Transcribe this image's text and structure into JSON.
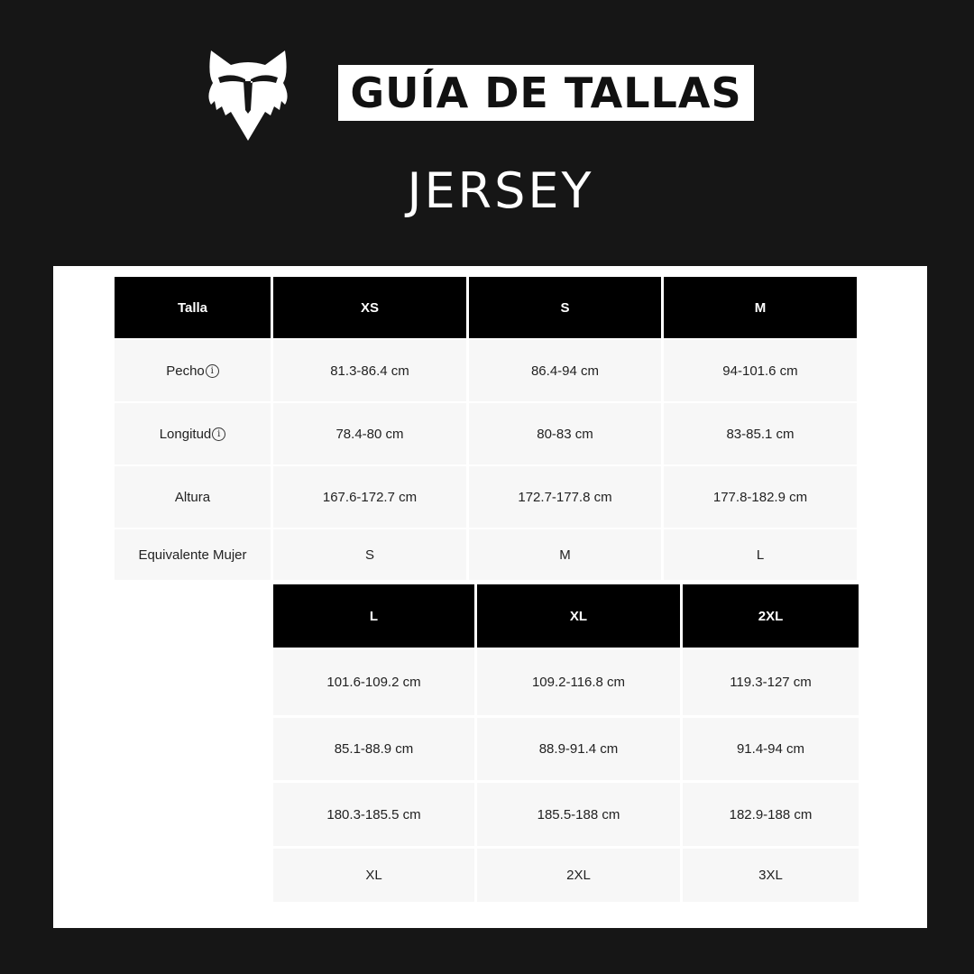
{
  "header": {
    "logo": "fox-head-logo",
    "title": "GUÍA DE TALLAS",
    "subtitle": "JERSEY"
  },
  "colors": {
    "background": "#161616",
    "header_cell": "#000000",
    "body_cell": "#f7f7f7"
  },
  "table1": {
    "row_header": "Talla",
    "columns": [
      "XS",
      "S",
      "M"
    ],
    "rows": [
      {
        "label": "Pecho",
        "info_icon": true,
        "values": [
          "81.3-86.4 cm",
          "86.4-94 cm",
          "94-101.6 cm"
        ]
      },
      {
        "label": "Longitud",
        "info_icon": true,
        "values": [
          "78.4-80 cm",
          "80-83 cm",
          "83-85.1 cm"
        ]
      },
      {
        "label": "Altura",
        "info_icon": false,
        "values": [
          "167.6-172.7 cm",
          "172.7-177.8 cm",
          "177.8-182.9 cm"
        ]
      },
      {
        "label": "Equivalente Mujer",
        "info_icon": false,
        "values": [
          "S",
          "M",
          "L"
        ]
      }
    ]
  },
  "table2": {
    "columns": [
      "L",
      "XL",
      "2XL"
    ],
    "rows": [
      {
        "values": [
          "101.6-109.2 cm",
          "109.2-116.8 cm",
          "119.3-127 cm"
        ]
      },
      {
        "values": [
          "85.1-88.9 cm",
          "88.9-91.4 cm",
          "91.4-94 cm"
        ]
      },
      {
        "values": [
          "180.3-185.5 cm",
          "185.5-188 cm",
          "182.9-188 cm"
        ]
      },
      {
        "values": [
          "XL",
          "2XL",
          "3XL"
        ]
      }
    ]
  }
}
